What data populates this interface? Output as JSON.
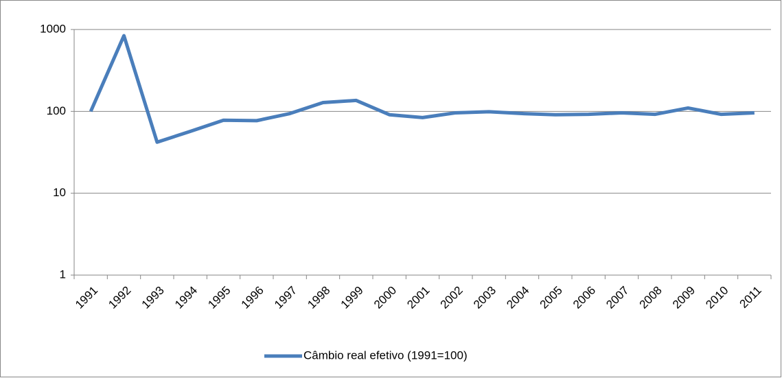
{
  "chart_data": {
    "type": "line",
    "categories": [
      "1991",
      "1992",
      "1993",
      "1994",
      "1995",
      "1996",
      "1997",
      "1998",
      "1999",
      "2000",
      "2001",
      "2002",
      "2003",
      "2004",
      "2005",
      "2006",
      "2007",
      "2008",
      "2009",
      "2010",
      "2011"
    ],
    "series": [
      {
        "name": "Câmbio real efetivo (1991=100)",
        "color": "#4a7ebb",
        "values": [
          100,
          840,
          42,
          57,
          78,
          77,
          94,
          128,
          136,
          91,
          84,
          96,
          99,
          94,
          91,
          92,
          96,
          92,
          110,
          92,
          96
        ]
      }
    ],
    "ylim": [
      1,
      1000
    ],
    "yticks": [
      1,
      10,
      100,
      1000
    ],
    "log_scale": true,
    "grid": true,
    "legend": "bottom"
  }
}
